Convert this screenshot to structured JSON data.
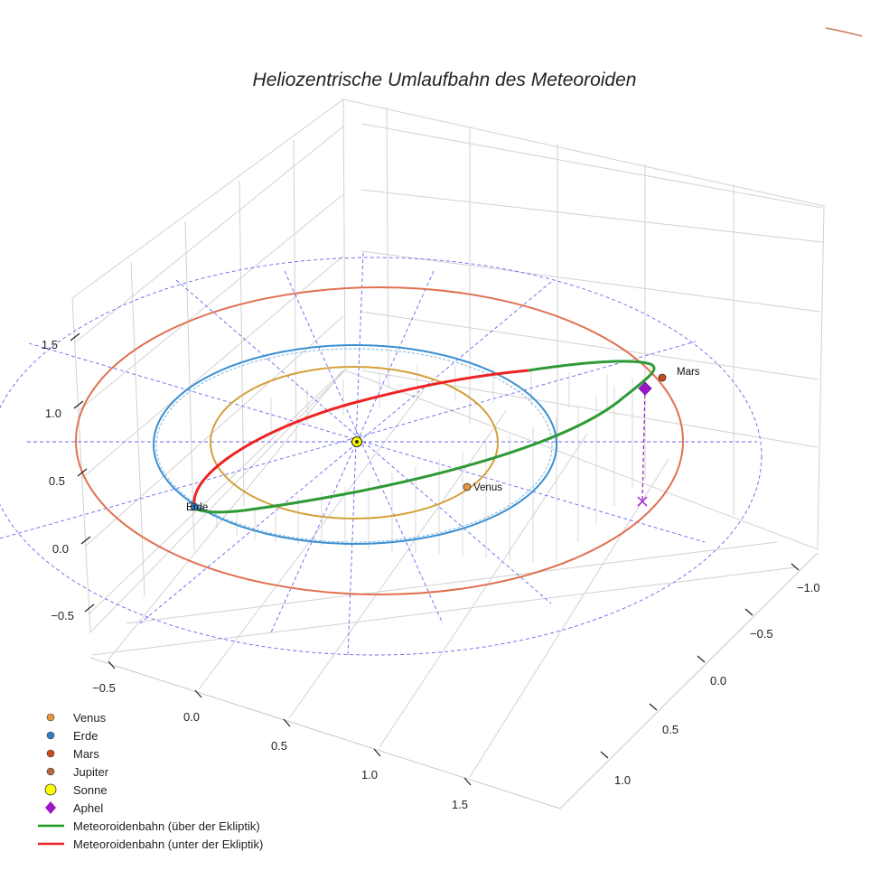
{
  "chart_data": {
    "type": "3d-orbit",
    "title": "Heliozentrische Umlaufbahn des Meteoroiden",
    "axes": {
      "z_ticks": [
        {
          "label": "1.5"
        },
        {
          "label": "1.0"
        },
        {
          "label": "0.5"
        },
        {
          "label": "0.0"
        },
        {
          "label": "−0.5"
        }
      ],
      "x_ticks": [
        {
          "label": "−0.5"
        },
        {
          "label": "0.0"
        },
        {
          "label": "0.5"
        },
        {
          "label": "1.0"
        },
        {
          "label": "1.5"
        }
      ],
      "y_ticks": [
        {
          "label": "−1.0"
        },
        {
          "label": "−0.5"
        },
        {
          "label": "0.0"
        },
        {
          "label": "0.5"
        },
        {
          "label": "1.0"
        }
      ]
    },
    "orbits": [
      {
        "name": "Venus",
        "radius_au": 0.72,
        "color": "#d4a03a"
      },
      {
        "name": "Erde",
        "radius_au": 1.0,
        "color": "#3b8fd1"
      },
      {
        "name": "Mars",
        "radius_au": 1.52,
        "color": "#e07050"
      },
      {
        "name": "Jupiter",
        "radius_au": 5.2,
        "color": "#c87a58"
      }
    ],
    "point_labels": {
      "venus": "Venus",
      "erde": "Erde",
      "mars": "Mars"
    },
    "meteoroid_orbit": {
      "perihelion_au": 1.0,
      "aphelion_au": 1.55,
      "segment_above": "Meteoroidenbahn (über der Ekliptik)",
      "segment_below": "Meteoroidenbahn (unter der Ekliptik)"
    },
    "legend": [
      {
        "label": "Venus",
        "marker": "circle",
        "color": "#e8963a"
      },
      {
        "label": "Erde",
        "marker": "circle",
        "color": "#2e7ec9"
      },
      {
        "label": "Mars",
        "marker": "circle",
        "color": "#cc4a1a"
      },
      {
        "label": "Jupiter",
        "marker": "circle",
        "color": "#b8663a"
      },
      {
        "label": "Sonne",
        "marker": "sun",
        "color": "#ffff00"
      },
      {
        "label": "Aphel",
        "marker": "diamond",
        "color": "#9a18c9"
      },
      {
        "label": "Meteoroidenbahn (über der Ekliptik)",
        "marker": "line",
        "color": "#1a9a1a"
      },
      {
        "label": "Meteoroidenbahn (unter der Ekliptik)",
        "marker": "line",
        "color": "#ee2222"
      }
    ]
  }
}
